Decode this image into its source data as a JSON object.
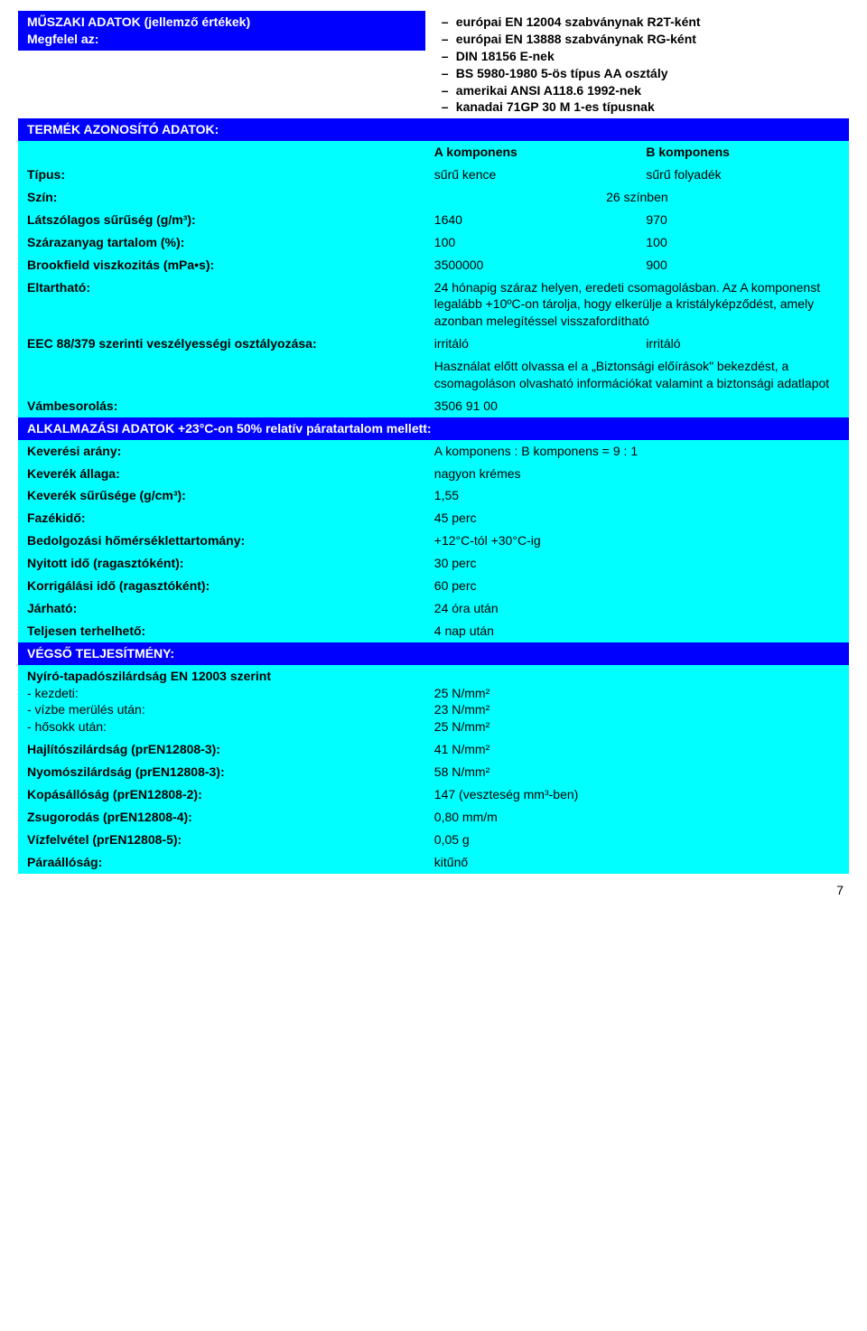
{
  "colors": {
    "header_bg": "#0000ff",
    "header_fg": "#ffffff",
    "row_bg": "#00ffff",
    "row_fg": "#000000",
    "page_bg": "#ffffff"
  },
  "sections": {
    "tech_title": "MŰSZAKI ADATOK (jellemző értékek)",
    "tech_sub": "Megfelel az:",
    "compliance": [
      "európai EN 12004 szabványnak R2T-ként",
      "európai EN 13888 szabványnak RG-ként",
      "DIN 18156 E-nek",
      "BS 5980-1980 5-ös típus AA osztály",
      "amerikai ANSI A118.6 1992-nek",
      "kanadai 71GP 30 M 1-es típusnak"
    ],
    "product_id_title": "TERMÉK AZONOSÍTÓ ADATOK:",
    "component_a": "A komponens",
    "component_b": "B komponens",
    "rows_product": {
      "tipus_label": "Típus:",
      "tipus_a": "sűrű kence",
      "tipus_b": "sűrű folyadék",
      "szin_label": "Szín:",
      "szin_val": "26 színben",
      "lats_label": "Látszólagos sűrűség (g/m³):",
      "lats_a": "1640",
      "lats_b": "970",
      "szaraz_label": "Szárazanyag tartalom (%):",
      "szaraz_a": "100",
      "szaraz_b": "100",
      "brook_label": "Brookfield viszkozitás (mPa•s):",
      "brook_a": "3500000",
      "brook_b": "900",
      "eltart_label": "Eltartható:",
      "eltart_val": "24 hónapig száraz helyen, eredeti csomagolásban. Az A komponenst legalább +10ºC-on tárolja, hogy elkerülje a kristályképződést, amely azonban melegítéssel visszafordítható",
      "eec_label": "EEC 88/379 szerinti veszélyességi osztályozása:",
      "eec_a": "irritáló",
      "eec_b": "irritáló",
      "eec_note": "Használat előtt olvassa el a „Biztonsági előírások\" bekezdést, a csomagoláson olvasható információkat valamint a biztonsági adatlapot",
      "vam_label": "Vámbesorolás:",
      "vam_val": "3506 91 00"
    },
    "alk_title": "ALKALMAZÁSI ADATOK +23°C-on 50% relatív páratartalom mellett:",
    "rows_alk": {
      "kever_arany_label": "Keverési arány:",
      "kever_arany_val": "A komponens : B komponens = 9 : 1",
      "kever_allaga_label": "Keverék állaga:",
      "kever_allaga_val": "nagyon krémes",
      "kever_sur_label": "Keverék sűrűsége (g/cm³):",
      "kever_sur_val": "1,55",
      "fazek_label": "Fazékidő:",
      "fazek_val": "45 perc",
      "bedolg_label": "Bedolgozási hőmérséklettartomány:",
      "bedolg_val": "+12°C-tól +30°C-ig",
      "nyitott_label": "Nyitott idő (ragasztóként):",
      "nyitott_val": "30 perc",
      "korrig_label": "Korrigálási idő (ragasztóként):",
      "korrig_val": "60 perc",
      "jarhato_label": "Járható:",
      "jarhato_val": "24 óra után",
      "teljes_label": "Teljesen terhelhető:",
      "teljes_val": "4 nap után"
    },
    "vegso_title": "VÉGSŐ TELJESÍTMÉNY:",
    "rows_vegso": {
      "nyiro_label": "Nyíró-tapadószilárdság EN 12003 szerint",
      "nyiro_k1": "-  kezdeti:",
      "nyiro_k2": "-  vízbe merülés után:",
      "nyiro_k3": "-  hősokk után:",
      "nyiro_v1": "25 N/mm²",
      "nyiro_v2": "23 N/mm²",
      "nyiro_v3": "25 N/mm²",
      "hajlito_label": "Hajlítószilárdság (prEN12808-3):",
      "hajlito_val": "41 N/mm²",
      "nyomo_label": "Nyomószilárdság (prEN12808-3):",
      "nyomo_val": "58 N/mm²",
      "kopas_label": "Kopásállóság (prEN12808-2):",
      "kopas_val": "147 (veszteség mm³-ben)",
      "zsug_label": "Zsugorodás (prEN12808-4):",
      "zsug_val": "0,80 mm/m",
      "vizfelv_label": "Vízfelvétel (prEN12808-5):",
      "vizfelv_val": "0,05 g",
      "para_label": "Páraállóság:",
      "para_val": "kitűnő"
    }
  },
  "page_number": "7"
}
